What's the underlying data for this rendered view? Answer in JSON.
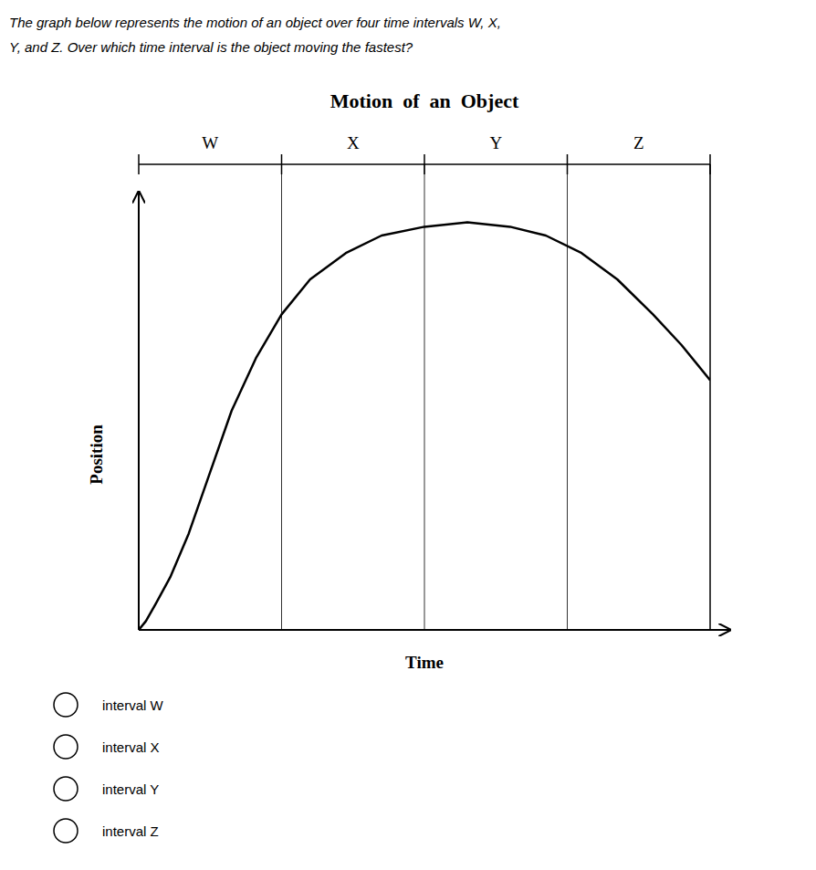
{
  "chart_data": {
    "type": "line",
    "title": "Motion  of  an  Object",
    "x_label": "Time",
    "y_label": "Position",
    "question": [
      "The graph below represents the motion of an object over four time intervals W, X,",
      "Y, and Z. Over which time interval is the object moving the fastest?"
    ],
    "choices": [
      "interval W",
      "interval X",
      "interval Y",
      "interval Z"
    ],
    "interval_labels": [
      "W",
      "X",
      "Y",
      "Z"
    ],
    "dividers": [
      1.0,
      2.0,
      3.0
    ],
    "x": [
      0.0,
      0.05,
      0.12,
      0.22,
      0.35,
      0.5,
      0.65,
      0.82,
      1.0,
      1.2,
      1.45,
      1.7,
      2.0,
      2.3,
      2.6,
      2.85,
      3.1,
      3.35,
      3.6,
      3.8,
      4.0
    ],
    "values": [
      0.0,
      0.02,
      0.06,
      0.12,
      0.22,
      0.36,
      0.5,
      0.62,
      0.72,
      0.8,
      0.86,
      0.9,
      0.92,
      0.93,
      0.92,
      0.9,
      0.86,
      0.8,
      0.72,
      0.65,
      0.57
    ],
    "color": "#000000",
    "xlim": [
      0.0,
      4.0
    ],
    "ylim": [
      0.0,
      1.0
    ],
    "xticks": [],
    "yticks": [],
    "tick_labels": false,
    "grid": false
  }
}
